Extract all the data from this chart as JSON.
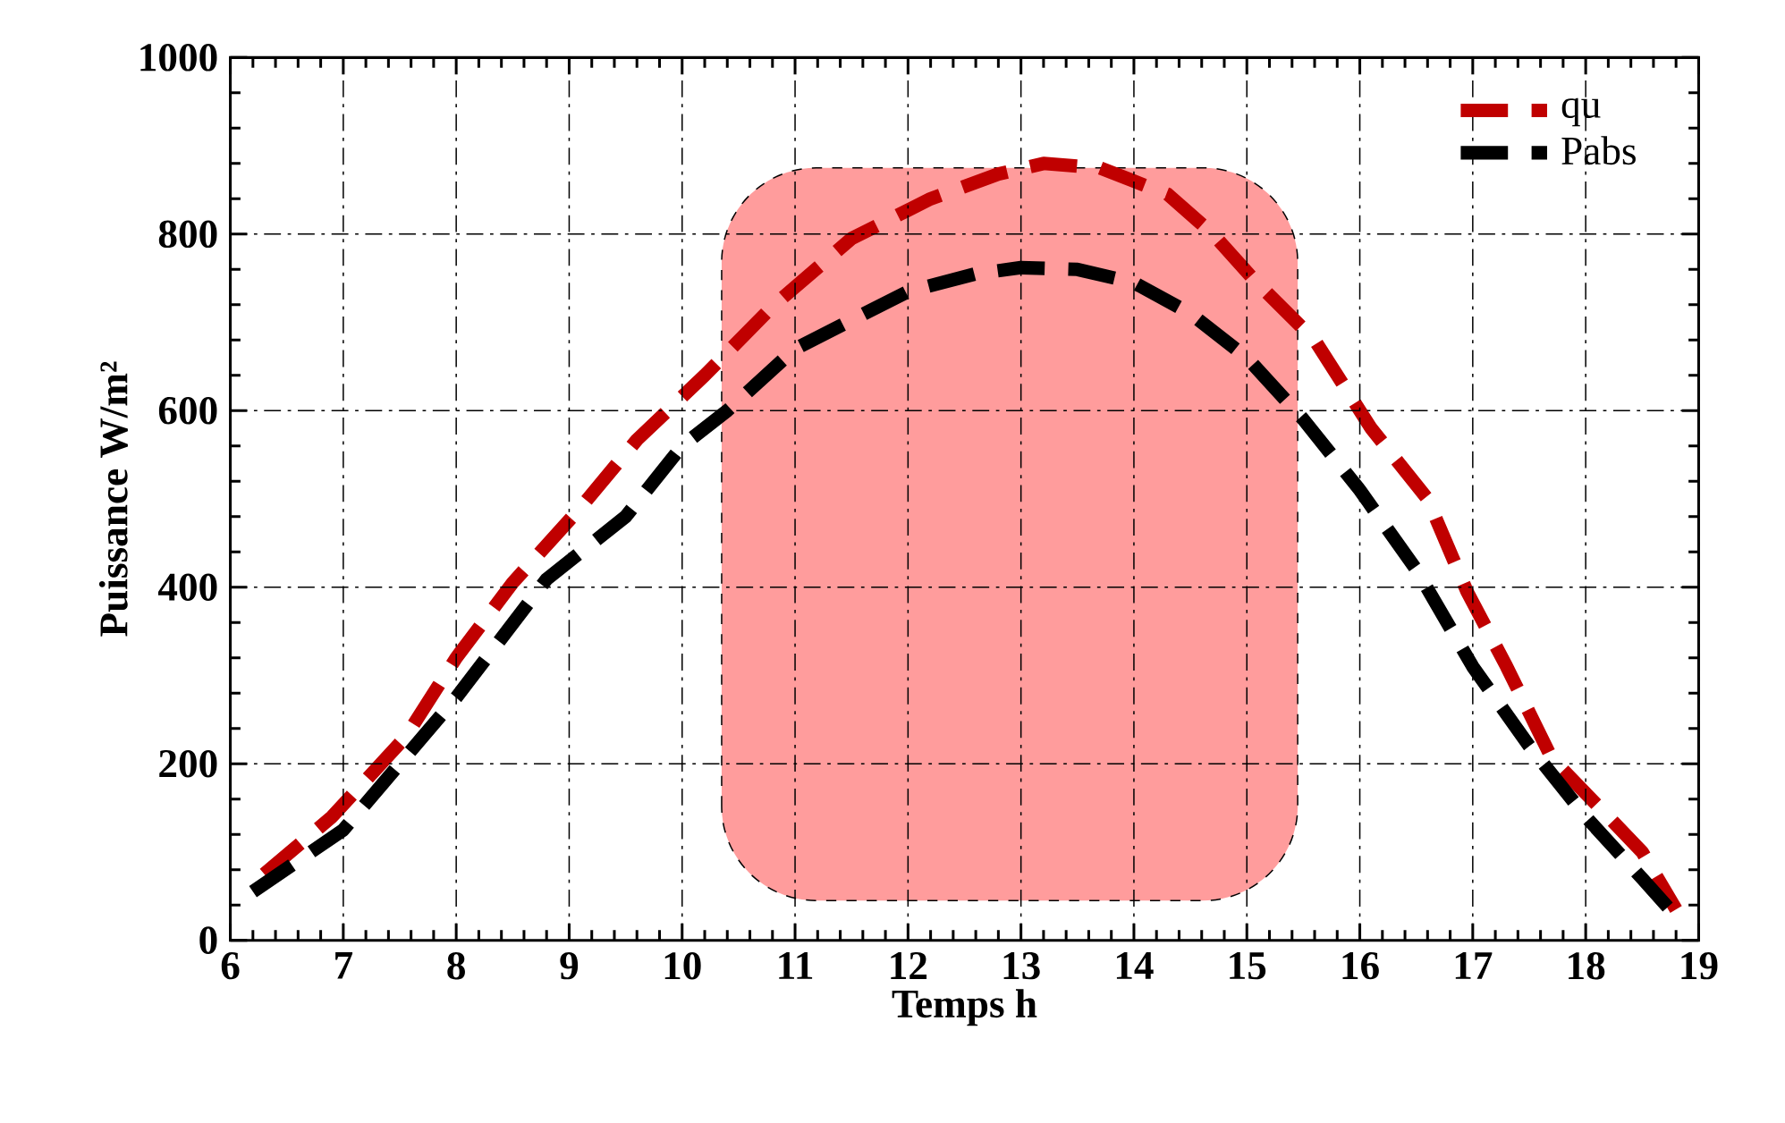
{
  "chart_data": {
    "type": "line",
    "xlabel": "Temps h",
    "ylabel": "Puissance W/m²",
    "xlim": [
      6,
      19
    ],
    "xticks": [
      6,
      7,
      8,
      9,
      10,
      11,
      12,
      13,
      14,
      15,
      16,
      17,
      18,
      19
    ],
    "ylim": [
      0,
      1000
    ],
    "yticks": [
      0,
      200,
      400,
      600,
      800,
      1000
    ],
    "grid": true,
    "legend": "top right",
    "line_style": "dashed",
    "marker": "none",
    "bands": [
      {
        "axis": "x",
        "from": 10.35,
        "to": 15.45,
        "color": "#ff9c9c"
      }
    ],
    "series": [
      {
        "name": "qu",
        "color": "#c00000",
        "x": [
          6.3,
          6.9,
          7.55,
          8.0,
          8.5,
          9.1,
          9.6,
          10.2,
          10.8,
          11.5,
          12.2,
          12.8,
          13.2,
          13.7,
          14.3,
          14.7,
          15.05,
          15.6,
          16.1,
          16.6,
          16.95,
          17.3,
          17.7,
          18.2,
          18.5,
          18.8
        ],
        "values": [
          75,
          140,
          230,
          320,
          405,
          490,
          567,
          640,
          718,
          795,
          840,
          868,
          880,
          875,
          845,
          800,
          750,
          680,
          580,
          500,
          395,
          310,
          206,
          140,
          100,
          35
        ]
      },
      {
        "name": "Pabs",
        "color": "#000000",
        "x": [
          6.2,
          7.0,
          8.0,
          8.8,
          9.5,
          10.0,
          10.4,
          11.0,
          12.0,
          12.6,
          13.0,
          13.5,
          14.0,
          14.5,
          15.0,
          15.5,
          16.0,
          16.5,
          17.0,
          17.5,
          18.0,
          18.5,
          18.85
        ],
        "values": [
          55,
          125,
          275,
          409,
          480,
          560,
          600,
          670,
          735,
          755,
          762,
          760,
          745,
          710,
          660,
          590,
          510,
          420,
          310,
          220,
          140,
          70,
          20
        ]
      }
    ]
  }
}
